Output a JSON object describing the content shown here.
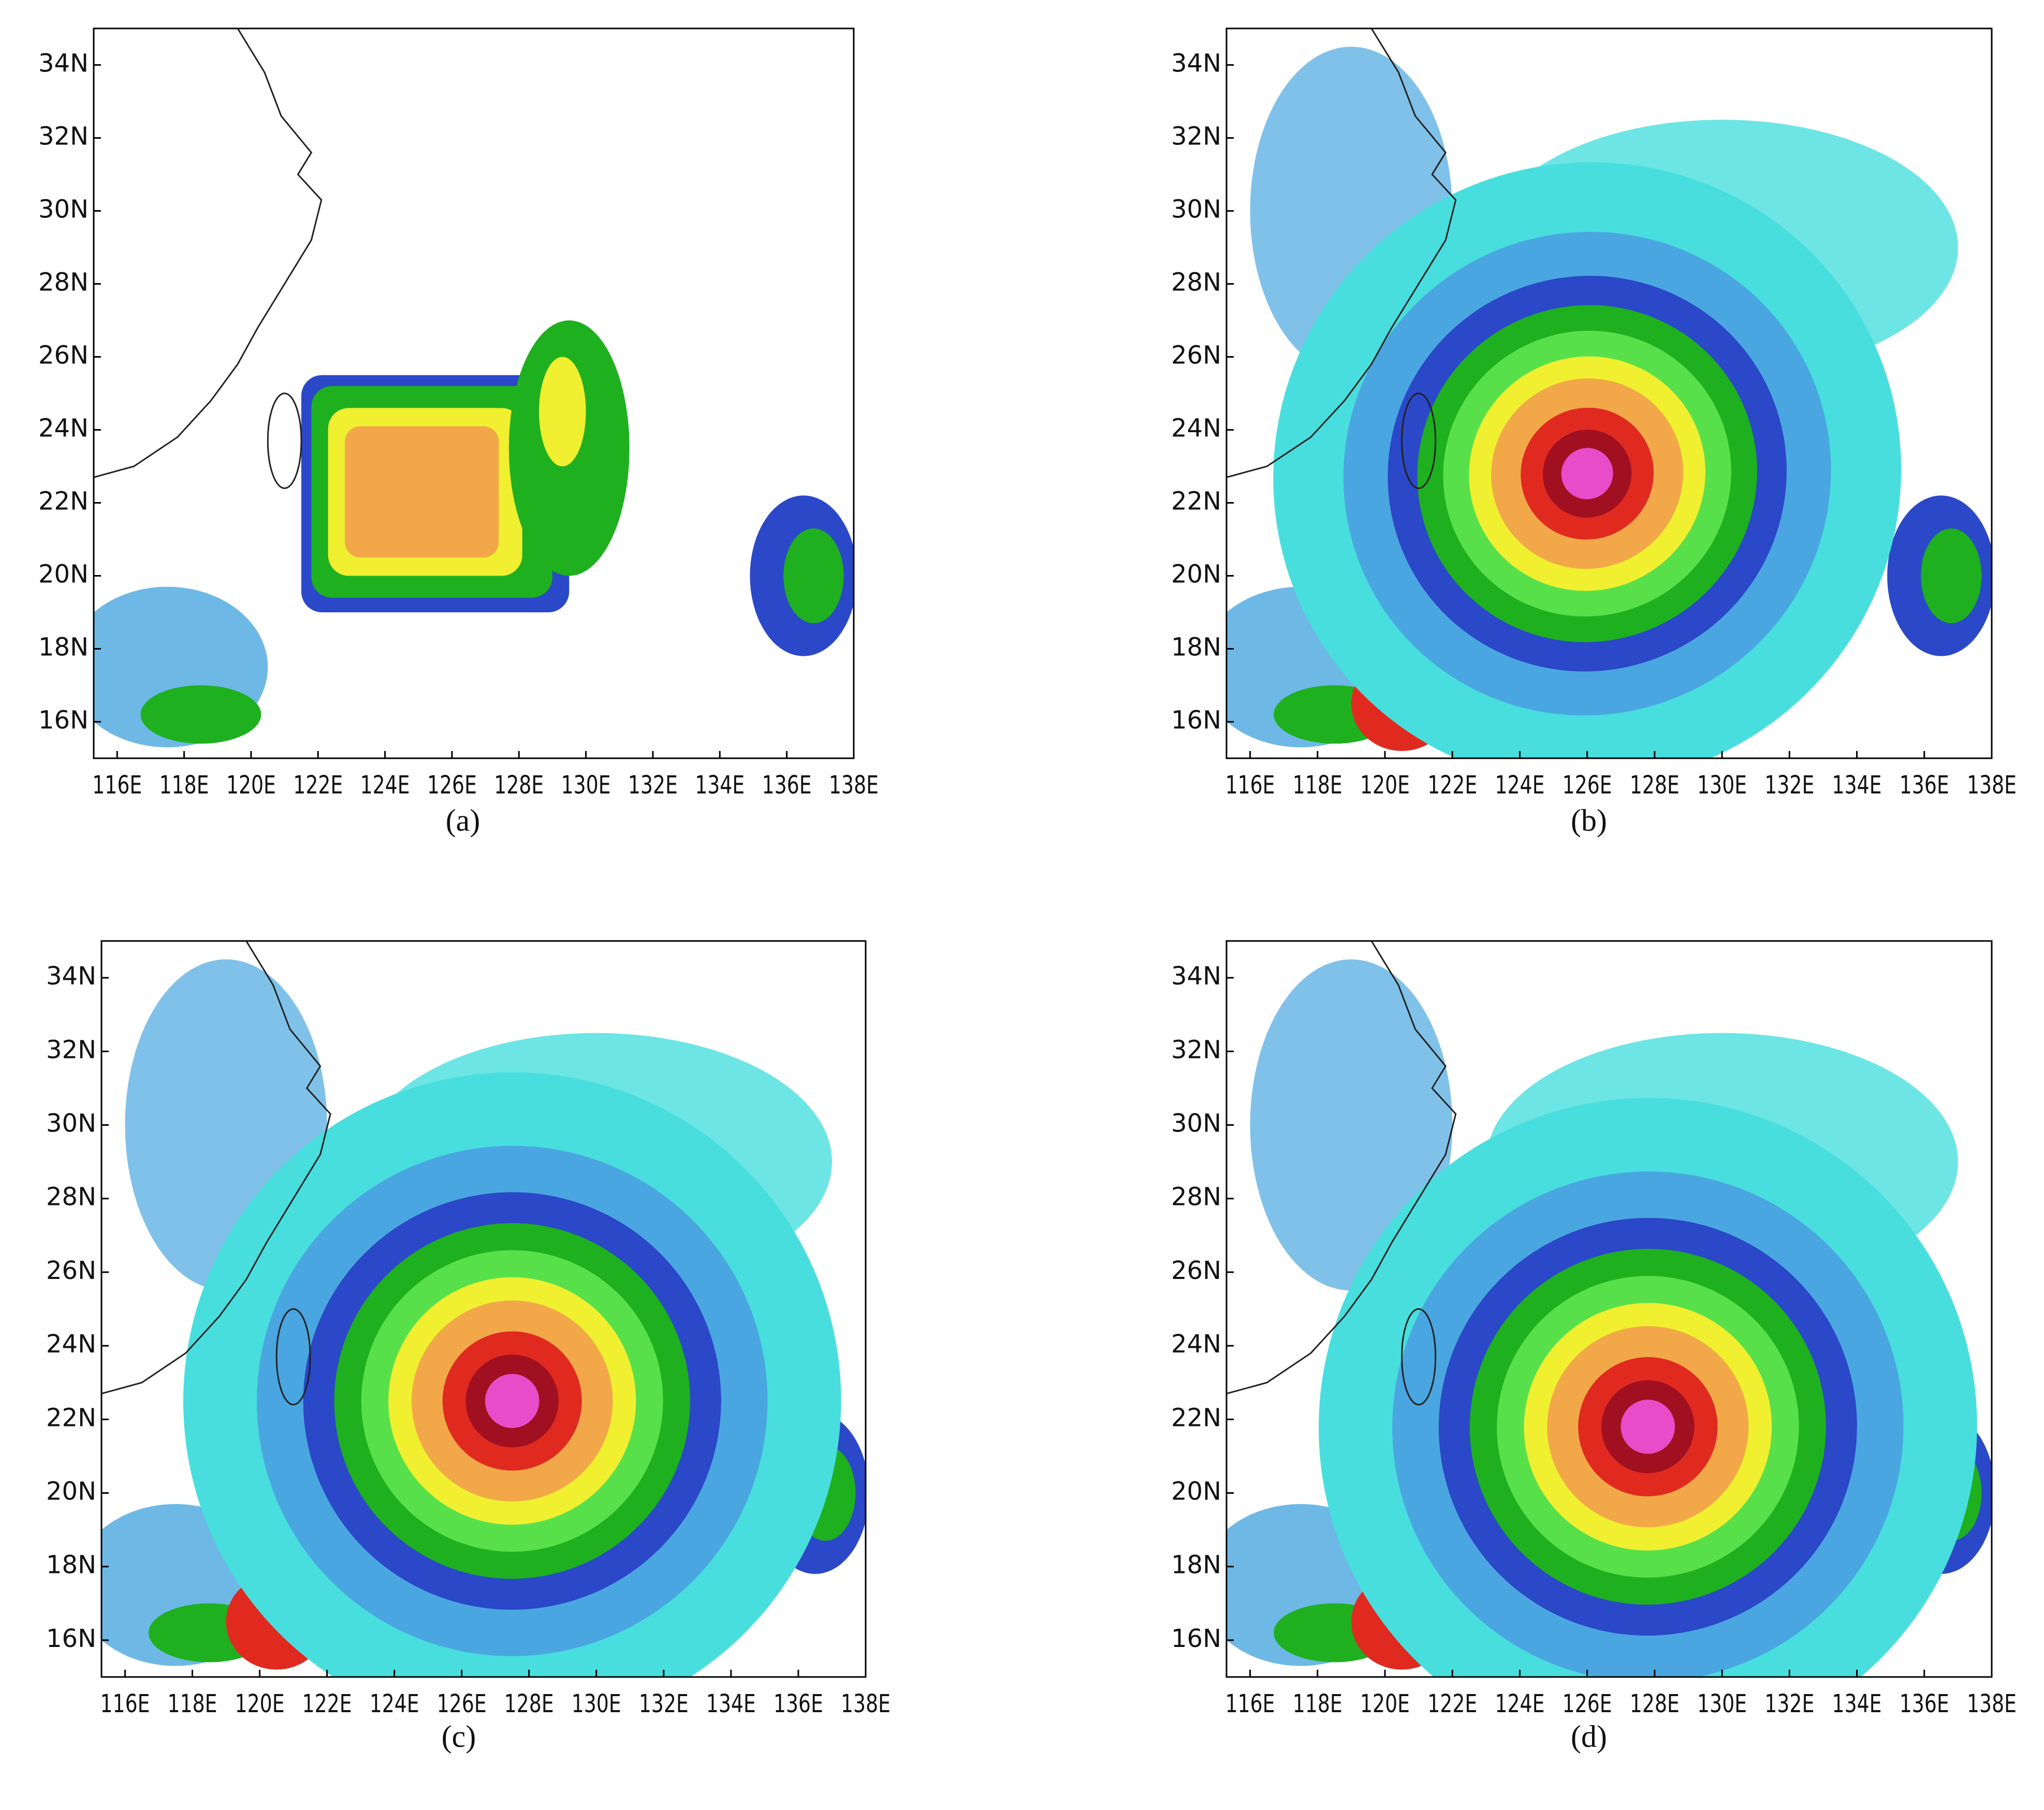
{
  "axes": {
    "xlim": [
      115.3,
      138
    ],
    "ylim": [
      15,
      35
    ],
    "xticks": [
      {
        "value": 116,
        "label": "116E"
      },
      {
        "value": 118,
        "label": "118E"
      },
      {
        "value": 120,
        "label": "120E"
      },
      {
        "value": 122,
        "label": "122E"
      },
      {
        "value": 124,
        "label": "124E"
      },
      {
        "value": 126,
        "label": "126E"
      },
      {
        "value": 128,
        "label": "128E"
      },
      {
        "value": 130,
        "label": "130E"
      },
      {
        "value": 132,
        "label": "132E"
      },
      {
        "value": 134,
        "label": "134E"
      },
      {
        "value": 136,
        "label": "136E"
      },
      {
        "value": 138,
        "label": "138E"
      }
    ],
    "yticks": [
      {
        "value": 16,
        "label": "16N"
      },
      {
        "value": 18,
        "label": "18N"
      },
      {
        "value": 20,
        "label": "20N"
      },
      {
        "value": 22,
        "label": "22N"
      },
      {
        "value": 24,
        "label": "24N"
      },
      {
        "value": 26,
        "label": "26N"
      },
      {
        "value": 28,
        "label": "28N"
      },
      {
        "value": 30,
        "label": "30N"
      },
      {
        "value": 32,
        "label": "32N"
      },
      {
        "value": 34,
        "label": "34N"
      }
    ]
  },
  "panels": [
    {
      "caption": "(a)"
    },
    {
      "caption": "(b)"
    },
    {
      "caption": "(c)"
    },
    {
      "caption": "(d)"
    }
  ]
}
